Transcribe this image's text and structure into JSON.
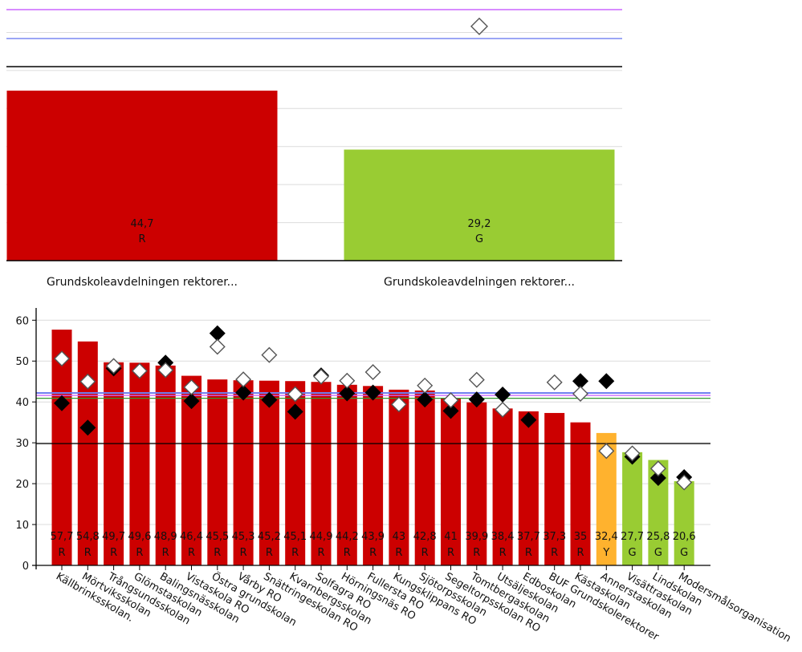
{
  "chart_data": [
    {
      "type": "bar",
      "categories": [
        "Grundskoleavdelningen rektorer...",
        "Grundskoleavdelningen rektorer..."
      ],
      "values": [
        44.7,
        29.2
      ],
      "value_labels": [
        "44,7",
        "29,2"
      ],
      "status_labels": [
        "R",
        "G"
      ],
      "colors": [
        "#cc0000",
        "#99cc33"
      ],
      "markers_hollow": [
        null,
        61.6
      ],
      "ref_lines": [
        {
          "value": 66.0,
          "color": "#cc66ff"
        },
        {
          "value": 58.4,
          "color": "#6f7ff0"
        },
        {
          "value": 51.0,
          "color": "#000000"
        }
      ],
      "ylim": [
        0,
        66
      ],
      "grid": true
    },
    {
      "type": "bar",
      "categories": [
        "Källbrinksskolan.",
        "Mörtviksskolan",
        "Trångsundsskolan",
        "Glömstaskolan",
        "Balingsnässkolan",
        "Vistaskola RO",
        "Östra grundskolan",
        "Vårby RO",
        "Snättringeskolan RO",
        "Kvarnbergsskolan",
        "Solfagra RO",
        "Hörningsnäs RO",
        "Fullersta RO",
        "Kungsklippans RO",
        "Sjötorpsskolan",
        "Segeltorpsskolan RO",
        "Tomtbergaskolan",
        "Utsäljeskolan",
        "Edboskolan",
        "BUF Grundskolerektorer",
        "Kästaskolan",
        "Annerstaskolan",
        "Visättraskolan",
        "Lindskolan",
        "Modersmålsorganisation"
      ],
      "values": [
        57.7,
        54.8,
        49.7,
        49.6,
        48.9,
        46.4,
        45.5,
        45.3,
        45.2,
        45.1,
        44.9,
        44.2,
        43.9,
        43,
        42.8,
        41,
        39.9,
        38.4,
        37.7,
        37.3,
        35,
        32.4,
        27.7,
        25.8,
        20.6
      ],
      "value_labels": [
        "57,7",
        "54,8",
        "49,7",
        "49,6",
        "48,9",
        "46,4",
        "45,5",
        "45,3",
        "45,2",
        "45,1",
        "44,9",
        "44,2",
        "43,9",
        "43",
        "42,8",
        "41",
        "39,9",
        "38,4",
        "37,7",
        "37,3",
        "35",
        "32,4",
        "27,7",
        "25,8",
        "20,6"
      ],
      "status_labels": [
        "R",
        "R",
        "R",
        "R",
        "R",
        "R",
        "R",
        "R",
        "R",
        "R",
        "R",
        "R",
        "R",
        "R",
        "R",
        "R",
        "R",
        "R",
        "R",
        "R",
        "R",
        "Y",
        "G",
        "G",
        "G"
      ],
      "colors": [
        "#cc0000",
        "#cc0000",
        "#cc0000",
        "#cc0000",
        "#cc0000",
        "#cc0000",
        "#cc0000",
        "#cc0000",
        "#cc0000",
        "#cc0000",
        "#cc0000",
        "#cc0000",
        "#cc0000",
        "#cc0000",
        "#cc0000",
        "#cc0000",
        "#cc0000",
        "#cc0000",
        "#cc0000",
        "#cc0000",
        "#cc0000",
        "#ffb22e",
        "#99cc33",
        "#99cc33",
        "#99cc33"
      ],
      "markers_filled": [
        39.7,
        33.7,
        48.2,
        null,
        49.6,
        40.2,
        56.8,
        42.3,
        40.5,
        37.6,
        46.5,
        42.1,
        42.3,
        null,
        40.6,
        37.8,
        40.6,
        41.8,
        35.6,
        null,
        45.1,
        45.1,
        26.6,
        21.4,
        21.6
      ],
      "markers_hollow": [
        50.6,
        45.0,
        48.8,
        47.6,
        47.8,
        43.6,
        53.5,
        45.5,
        51.5,
        41.9,
        46.2,
        45.2,
        47.3,
        39.4,
        44.0,
        40.4,
        45.4,
        38.1,
        null,
        44.8,
        42.0,
        28.0,
        27.4,
        23.7,
        20.3
      ],
      "ref_lines": [
        {
          "value": 42.2,
          "color": "#6f7ff0"
        },
        {
          "value": 41.6,
          "color": "#cc66ff"
        },
        {
          "value": 40.9,
          "color": "#339933"
        },
        {
          "value": 29.8,
          "color": "#000000"
        }
      ],
      "yticks": [
        "0",
        "10",
        "20",
        "30",
        "40",
        "50",
        "60"
      ],
      "ylim": [
        0,
        63
      ],
      "grid": true
    }
  ]
}
